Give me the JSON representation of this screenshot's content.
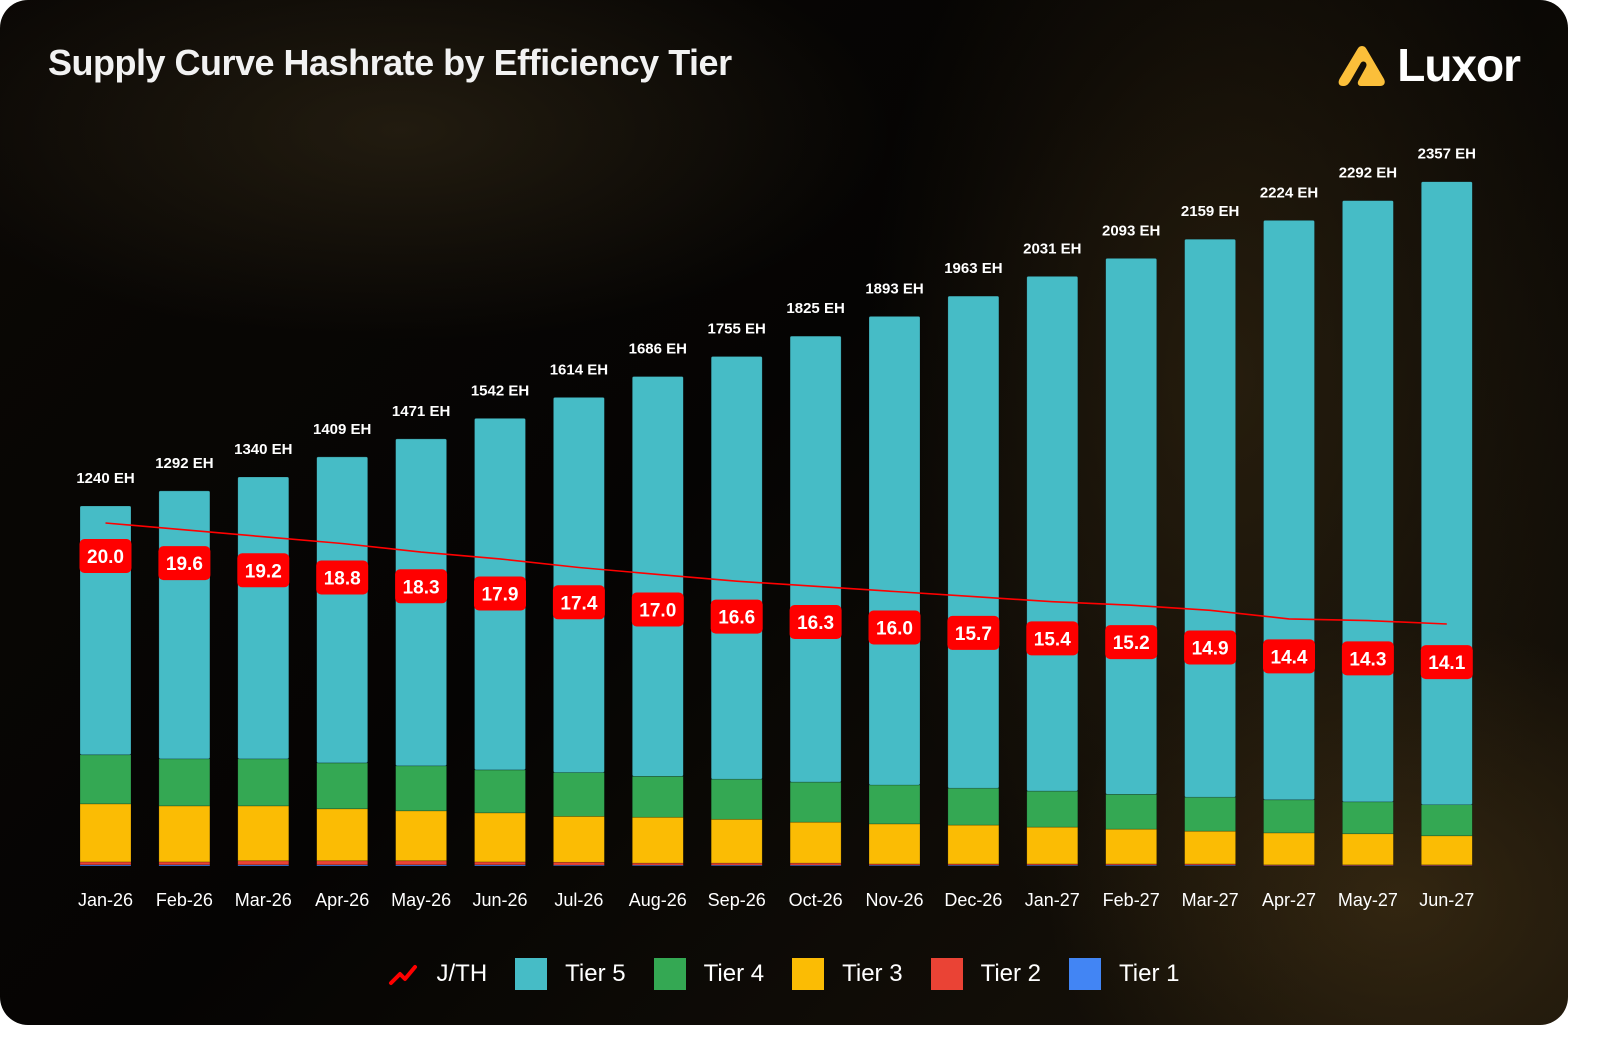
{
  "header": {
    "title": "Supply Curve Hashrate by Efficiency Tier",
    "logo_text": "Luxor"
  },
  "colors": {
    "tier5": "#46bcc6",
    "tier4": "#34a853",
    "tier3": "#fbbc04",
    "tier2": "#ea4335",
    "tier1": "#4285f4",
    "jth_line": "#ff0000",
    "jth_badge": "#ff0000",
    "logo_accent": "#fbbf3a"
  },
  "legend": [
    {
      "key": "jth",
      "label": "J/TH",
      "icon": "trend-line-icon"
    },
    {
      "key": "tier5",
      "label": "Tier 5"
    },
    {
      "key": "tier4",
      "label": "Tier 4"
    },
    {
      "key": "tier3",
      "label": "Tier 3"
    },
    {
      "key": "tier2",
      "label": "Tier 2"
    },
    {
      "key": "tier1",
      "label": "Tier 1"
    }
  ],
  "chart_data": {
    "type": "bar",
    "stacked": true,
    "title": "Supply Curve Hashrate by Efficiency Tier",
    "xlabel": "",
    "ylabel": "",
    "unit_suffix": " EH",
    "ylim": [
      0,
      2400
    ],
    "grid": false,
    "legend_position": "bottom",
    "categories": [
      "Jan-26",
      "Feb-26",
      "Mar-26",
      "Apr-26",
      "May-26",
      "Jun-26",
      "Jul-26",
      "Aug-26",
      "Sep-26",
      "Oct-26",
      "Nov-26",
      "Dec-26",
      "Jan-27",
      "Feb-27",
      "Mar-27",
      "Apr-27",
      "May-27",
      "Jun-27"
    ],
    "totals": [
      1240,
      1292,
      1340,
      1409,
      1471,
      1542,
      1614,
      1686,
      1755,
      1825,
      1893,
      1963,
      2031,
      2093,
      2159,
      2224,
      2292,
      2357
    ],
    "total_labels": [
      "1240 EH",
      "1292 EH",
      "1340 EH",
      "1409 EH",
      "1471 EH",
      "1542 EH",
      "1614 EH",
      "1686 EH",
      "1755 EH",
      "1825 EH",
      "1893 EH",
      "1963 EH",
      "2031 EH",
      "2093 EH",
      "2159 EH",
      "2224 EH",
      "2292 EH",
      "2357 EH"
    ],
    "series": [
      {
        "name": "Tier 1",
        "key": "tier1",
        "values": [
          4,
          4,
          4,
          4,
          4,
          4,
          3,
          3,
          3,
          3,
          3,
          3,
          3,
          3,
          3,
          3,
          3,
          3
        ]
      },
      {
        "name": "Tier 2",
        "key": "tier2",
        "values": [
          10,
          10,
          14,
          14,
          14,
          10,
          10,
          7,
          7,
          7,
          4,
          4,
          4,
          4,
          4,
          1,
          1,
          1
        ]
      },
      {
        "name": "Tier 3",
        "key": "tier3",
        "values": [
          200,
          193,
          189,
          179,
          172,
          169,
          158,
          158,
          151,
          141,
          138,
          134,
          127,
          120,
          113,
          110,
          107,
          100
        ]
      },
      {
        "name": "Tier 4",
        "key": "tier4",
        "values": [
          169,
          162,
          162,
          158,
          155,
          148,
          151,
          141,
          138,
          138,
          134,
          127,
          124,
          120,
          117,
          114,
          110,
          107
        ]
      },
      {
        "name": "Tier 5",
        "key": "tier5",
        "values": [
          857,
          923,
          971,
          1054,
          1126,
          1211,
          1292,
          1377,
          1456,
          1536,
          1614,
          1695,
          1773,
          1846,
          1922,
          1996,
          2071,
          2146
        ]
      }
    ],
    "line_series": {
      "name": "J/TH",
      "values": [
        20.0,
        19.6,
        19.2,
        18.8,
        18.3,
        17.9,
        17.4,
        17.0,
        16.6,
        16.3,
        16.0,
        15.7,
        15.4,
        15.2,
        14.9,
        14.4,
        14.3,
        14.1
      ],
      "labels": [
        "20.0",
        "19.6",
        "19.2",
        "18.8",
        "18.3",
        "17.9",
        "17.4",
        "17.0",
        "16.6",
        "16.3",
        "16.0",
        "15.7",
        "15.4",
        "15.2",
        "14.9",
        "14.4",
        "14.3",
        "14.1"
      ]
    }
  }
}
